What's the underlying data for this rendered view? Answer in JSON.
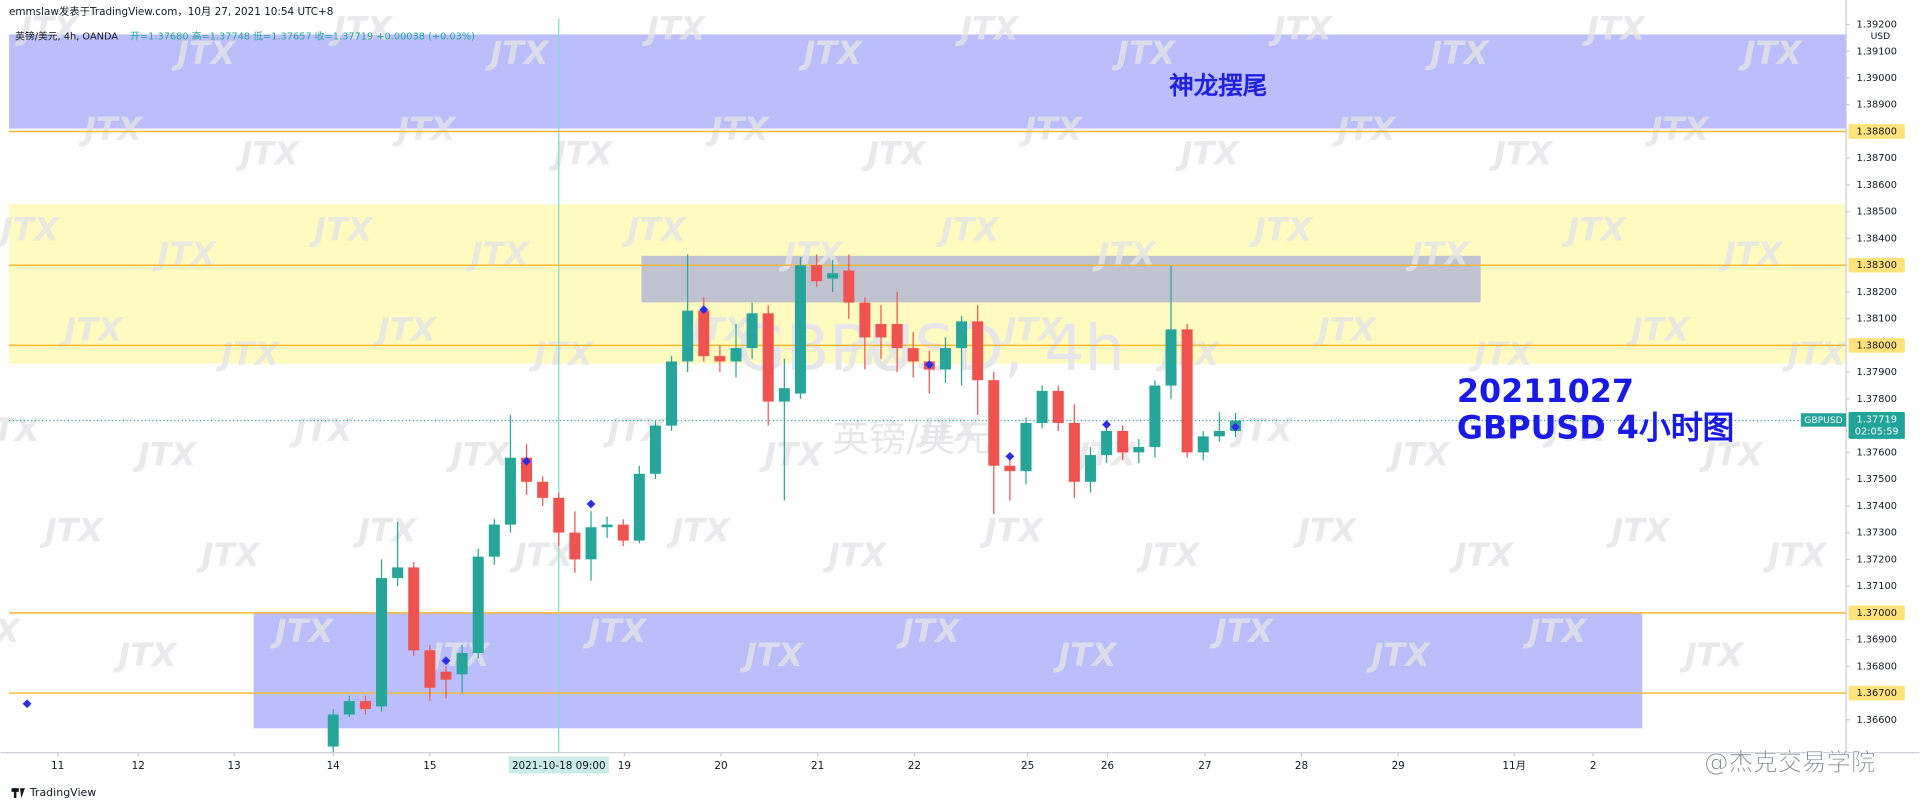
{
  "header": {
    "author_line": "emmslaw发表于TradingView.com，10月 27, 2021 10:54 UTC+8",
    "symbol_line": "英镑/美元, 4h, OANDA",
    "ohlc_line": "开=1.37680  高=1.37748  低=1.37657  收=1.37719  +0.00038 (+0.03%)"
  },
  "footer": {
    "brand": "TradingView",
    "source_watermark": "@杰克交易学院"
  },
  "chart_data": {
    "type": "candlestick",
    "watermark": "JTX",
    "symbol_watermark": "GBPUSD, 4h",
    "name_watermark": "英镑/美元",
    "currency": "USD",
    "annotations": [
      "神龙摆尾",
      "20211027",
      "GBPUSD 4小时图"
    ],
    "up_color": "#26a69a",
    "down_color": "#ef5350",
    "marker_color": "#2b2ee6",
    "open": [
      1.365,
      1.3662,
      1.3667,
      1.3665,
      1.3713,
      1.3717,
      1.3686,
      1.3678,
      1.3677,
      1.3685,
      1.3721,
      1.3733,
      1.3758,
      1.3749,
      1.3743,
      1.373,
      1.372,
      1.3732,
      1.3733,
      1.3727,
      1.3752,
      1.377,
      1.3794,
      1.3813,
      1.3796,
      1.3794,
      1.3799,
      1.3812,
      1.3779,
      1.3782,
      1.383,
      1.3825,
      1.3828,
      1.3816,
      1.3808,
      1.3808,
      1.3799,
      1.3794,
      1.3791,
      1.3799,
      1.3809,
      1.3787,
      1.3755,
      1.3753,
      1.3771,
      1.3783,
      1.3771,
      1.3749,
      1.3759,
      1.3768,
      1.376,
      1.3762,
      1.3785,
      1.3806,
      1.376,
      1.3766,
      1.3768
    ],
    "high": [
      1.3664,
      1.3669,
      1.3669,
      1.372,
      1.3734,
      1.3719,
      1.3688,
      1.368,
      1.3688,
      1.3724,
      1.3735,
      1.3774,
      1.3763,
      1.3751,
      1.3745,
      1.3738,
      1.3738,
      1.3736,
      1.3735,
      1.3755,
      1.3772,
      1.3796,
      1.3834,
      1.3818,
      1.38,
      1.3808,
      1.3816,
      1.3815,
      1.3795,
      1.3833,
      1.3834,
      1.3832,
      1.3834,
      1.3818,
      1.3815,
      1.382,
      1.3805,
      1.3798,
      1.3803,
      1.3811,
      1.3815,
      1.379,
      1.376,
      1.3773,
      1.3785,
      1.3785,
      1.3778,
      1.3762,
      1.3772,
      1.377,
      1.3765,
      1.3787,
      1.383,
      1.3808,
      1.3768,
      1.3775,
      1.37748
    ],
    "low": [
      1.364,
      1.3661,
      1.3662,
      1.3663,
      1.371,
      1.3684,
      1.3667,
      1.3668,
      1.367,
      1.3683,
      1.3718,
      1.373,
      1.3744,
      1.374,
      1.3725,
      1.3715,
      1.3712,
      1.3728,
      1.3725,
      1.3726,
      1.375,
      1.3768,
      1.379,
      1.3794,
      1.379,
      1.3788,
      1.3795,
      1.377,
      1.3742,
      1.378,
      1.3822,
      1.382,
      1.381,
      1.3791,
      1.3795,
      1.379,
      1.3788,
      1.3782,
      1.3786,
      1.3785,
      1.3774,
      1.3737,
      1.3742,
      1.3748,
      1.3769,
      1.3768,
      1.3743,
      1.3745,
      1.3756,
      1.3757,
      1.3756,
      1.3758,
      1.378,
      1.3758,
      1.3757,
      1.3764,
      1.37657
    ],
    "close": [
      1.3662,
      1.3667,
      1.3664,
      1.3713,
      1.3717,
      1.3686,
      1.3672,
      1.3675,
      1.3685,
      1.3721,
      1.3733,
      1.3758,
      1.3749,
      1.3743,
      1.373,
      1.372,
      1.3732,
      1.3733,
      1.3727,
      1.3752,
      1.377,
      1.3794,
      1.3813,
      1.3796,
      1.3794,
      1.3799,
      1.3812,
      1.3779,
      1.3784,
      1.383,
      1.3824,
      1.3827,
      1.3816,
      1.3803,
      1.3803,
      1.3799,
      1.3794,
      1.3791,
      1.3799,
      1.3809,
      1.3787,
      1.3755,
      1.3753,
      1.3771,
      1.3783,
      1.3771,
      1.3749,
      1.3759,
      1.3768,
      1.376,
      1.3762,
      1.3785,
      1.3806,
      1.376,
      1.3766,
      1.3768,
      1.37719
    ],
    "markers": [
      {
        "x": -19,
        "y": 1.3666
      },
      {
        "x": 7,
        "y": 1.36821
      },
      {
        "x": 12,
        "y": 1.37567
      },
      {
        "x": 16,
        "y": 1.37407
      },
      {
        "x": 23,
        "y": 1.38134
      },
      {
        "x": 37,
        "y": 1.37928
      },
      {
        "x": 42,
        "y": 1.37585
      },
      {
        "x": 48,
        "y": 1.37704
      },
      {
        "x": 56,
        "y": 1.37695
      }
    ],
    "zones": [
      {
        "color": "#b4b7fb",
        "y": [
          1.38811,
          1.39163
        ]
      },
      {
        "color": "#fffab8",
        "y": [
          1.37932,
          1.38527
        ]
      },
      {
        "color": "#babbd0",
        "x": [
          19.13,
          71.22
        ],
        "y": [
          1.38161,
          1.38335
        ]
      },
      {
        "color": "#b4b7fb",
        "x": [
          -4.94,
          81.25
        ],
        "y": [
          1.36568,
          1.37
        ]
      }
    ],
    "level_color": "#f7b731",
    "level_label_color": "#ffe27a",
    "levels": [
      {
        "value": 1.388,
        "label": "1.38800"
      },
      {
        "value": 1.383,
        "label": "1.38300"
      },
      {
        "value": 1.38,
        "label": "1.38000"
      },
      {
        "value": 1.37,
        "label": "1.37000"
      },
      {
        "value": 1.367,
        "label": "1.36700"
      }
    ],
    "last_price": {
      "value": 1.37719,
      "label": "1.37719",
      "countdown": "02:05:59",
      "symbol": "GBPUSD",
      "color": "#22a39a"
    },
    "crosshair": {
      "x": 14,
      "label": "2021-10-18  09:00"
    },
    "xlim": [
      -20.12,
      93.9
    ],
    "ylim": [
      1.36477,
      1.39223
    ],
    "grid": false,
    "xticks": [
      {
        "value": -17.1,
        "label": "11"
      },
      {
        "value": -12.1,
        "label": "12"
      },
      {
        "value": -6.15,
        "label": "13"
      },
      {
        "value": 0,
        "label": "14"
      },
      {
        "value": 6,
        "label": "15"
      },
      {
        "value": 18.07,
        "label": "19"
      },
      {
        "value": 24.07,
        "label": "20"
      },
      {
        "value": 30.07,
        "label": "21"
      },
      {
        "value": 36.07,
        "label": "22"
      },
      {
        "value": 43.1,
        "label": "25"
      },
      {
        "value": 48.06,
        "label": "26"
      },
      {
        "value": 54.1,
        "label": "27"
      },
      {
        "value": 60.1,
        "label": "28"
      },
      {
        "value": 66.1,
        "label": "29"
      },
      {
        "value": 73.3,
        "label": "11月"
      },
      {
        "value": 78.2,
        "label": "2"
      }
    ],
    "yticks": [
      {
        "value": 1.392,
        "label": "1.39200"
      },
      {
        "value": 1.391,
        "label": "1.39100"
      },
      {
        "value": 1.39,
        "label": "1.39000"
      },
      {
        "value": 1.389,
        "label": "1.38900"
      },
      {
        "value": 1.387,
        "label": "1.38700"
      },
      {
        "value": 1.386,
        "label": "1.38600"
      },
      {
        "value": 1.385,
        "label": "1.38500"
      },
      {
        "value": 1.384,
        "label": "1.38400"
      },
      {
        "value": 1.382,
        "label": "1.38200"
      },
      {
        "value": 1.381,
        "label": "1.38100"
      },
      {
        "value": 1.379,
        "label": "1.37900"
      },
      {
        "value": 1.378,
        "label": "1.37800"
      },
      {
        "value": 1.376,
        "label": "1.37600"
      },
      {
        "value": 1.375,
        "label": "1.37500"
      },
      {
        "value": 1.374,
        "label": "1.37400"
      },
      {
        "value": 1.373,
        "label": "1.37300"
      },
      {
        "value": 1.372,
        "label": "1.37200"
      },
      {
        "value": 1.371,
        "label": "1.37100"
      },
      {
        "value": 1.369,
        "label": "1.36900"
      },
      {
        "value": 1.368,
        "label": "1.36800"
      },
      {
        "value": 1.366,
        "label": "1.36600"
      }
    ]
  }
}
